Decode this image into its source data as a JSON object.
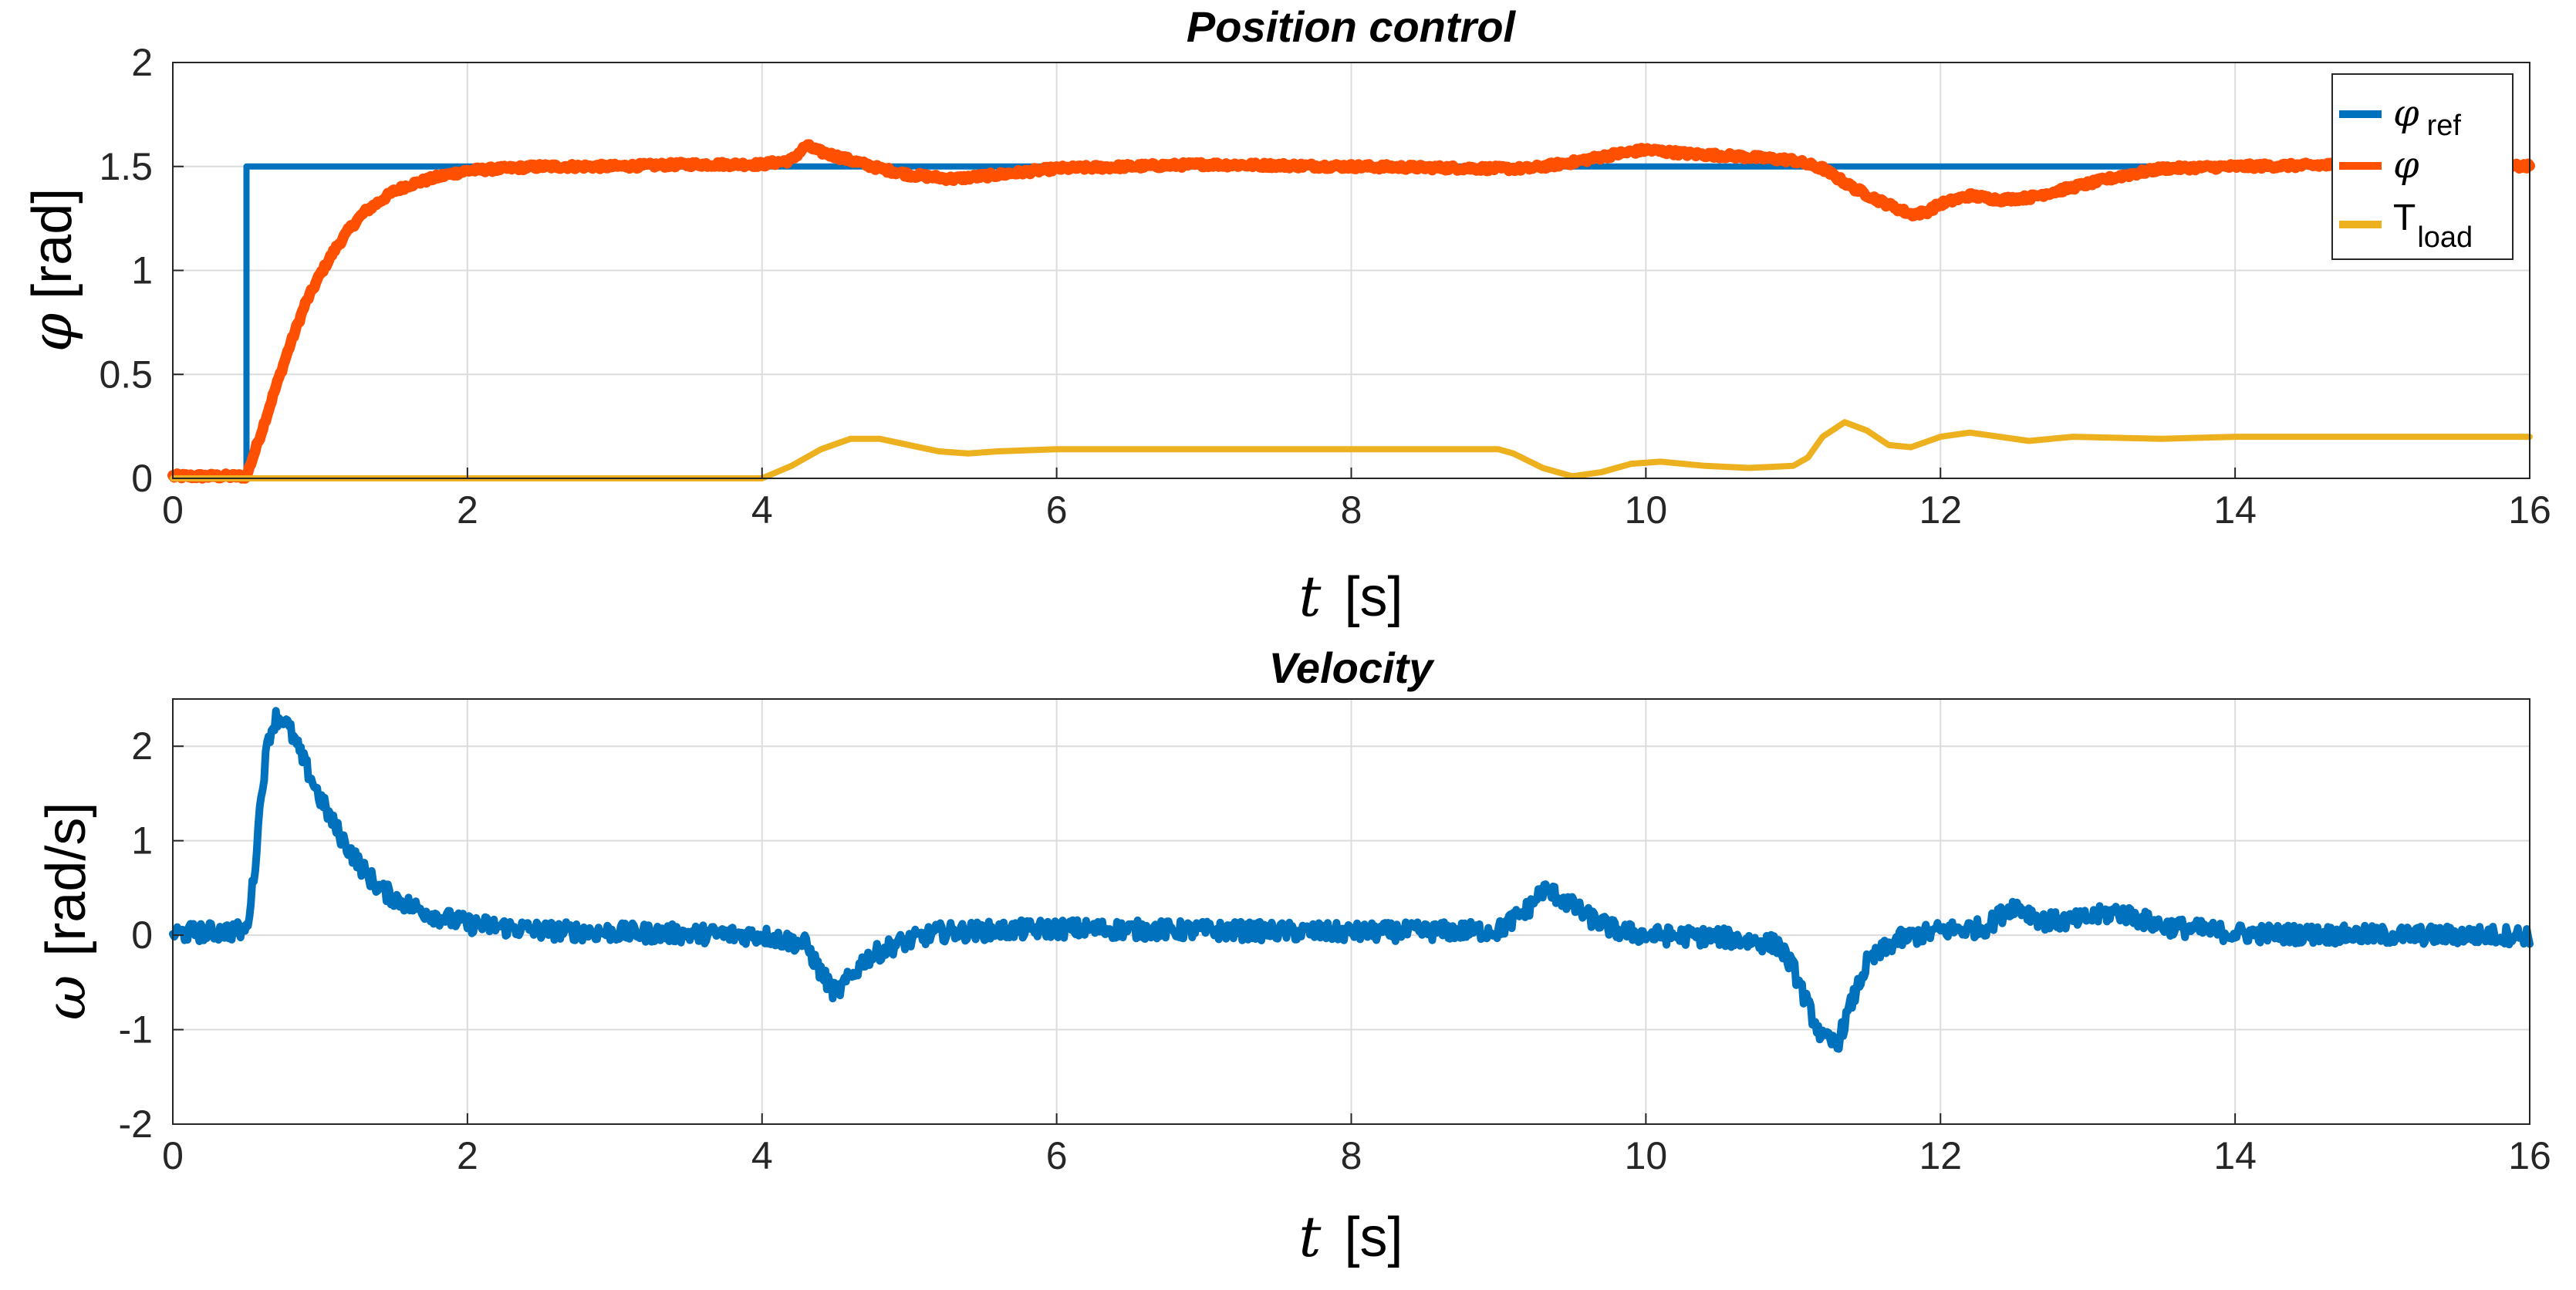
{
  "chart_data": [
    {
      "type": "line",
      "title": "Position control",
      "xlabel": "t",
      "xunit": "[s]",
      "ylabel": "φ",
      "yunit": "[rad]",
      "xlim": [
        0,
        16
      ],
      "ylim": [
        0,
        2
      ],
      "xticks": [
        0,
        2,
        4,
        6,
        8,
        10,
        12,
        14,
        16
      ],
      "yticks": [
        0,
        0.5,
        1,
        1.5,
        2
      ],
      "ytick_labels": [
        "0",
        "0.5",
        "1",
        "1.5",
        "2"
      ],
      "grid": true,
      "legend_position": "top-right",
      "series": [
        {
          "name": "φ",
          "subscript": "ref",
          "color": "#0072BD",
          "noise": 0,
          "x": [
            0,
            0.5,
            0.5,
            16
          ],
          "y": [
            0,
            0,
            1.5,
            1.5
          ]
        },
        {
          "name": "φ",
          "subscript": "",
          "color": "#FF4F00",
          "noise": 0.012,
          "x": [
            0,
            0.5,
            0.6,
            0.7,
            0.8,
            0.9,
            1.0,
            1.1,
            1.2,
            1.3,
            1.4,
            1.5,
            1.6,
            1.8,
            2.0,
            2.5,
            3.0,
            3.5,
            4.0,
            4.2,
            4.3,
            4.4,
            4.6,
            4.8,
            5.0,
            5.3,
            5.6,
            6.0,
            7.0,
            8.0,
            9.0,
            9.2,
            9.5,
            9.8,
            10.0,
            10.3,
            10.6,
            11.0,
            11.2,
            11.4,
            11.6,
            11.8,
            11.9,
            12.0,
            12.2,
            12.4,
            12.6,
            12.9,
            13.2,
            13.5,
            14.0,
            15.0,
            16.0
          ],
          "y": [
            0.01,
            0.01,
            0.22,
            0.44,
            0.65,
            0.84,
            0.98,
            1.1,
            1.2,
            1.28,
            1.33,
            1.38,
            1.41,
            1.45,
            1.48,
            1.5,
            1.5,
            1.51,
            1.51,
            1.53,
            1.6,
            1.57,
            1.53,
            1.49,
            1.46,
            1.44,
            1.46,
            1.49,
            1.51,
            1.5,
            1.49,
            1.49,
            1.52,
            1.56,
            1.58,
            1.56,
            1.55,
            1.53,
            1.49,
            1.4,
            1.33,
            1.27,
            1.28,
            1.32,
            1.36,
            1.34,
            1.35,
            1.4,
            1.45,
            1.49,
            1.5,
            1.51,
            1.5
          ]
        },
        {
          "name": "T",
          "subscript": "load",
          "color": "#EDB120",
          "noise": 0,
          "x": [
            0,
            4.0,
            4.2,
            4.4,
            4.6,
            4.8,
            5.0,
            5.2,
            5.4,
            5.6,
            6.0,
            7.0,
            8.0,
            9.0,
            9.1,
            9.3,
            9.5,
            9.7,
            9.9,
            10.1,
            10.4,
            10.7,
            11.0,
            11.1,
            11.2,
            11.35,
            11.5,
            11.65,
            11.8,
            12.0,
            12.2,
            12.4,
            12.6,
            12.9,
            13.5,
            14.0,
            15.0,
            16.0
          ],
          "y": [
            0,
            0,
            0.06,
            0.14,
            0.19,
            0.19,
            0.16,
            0.13,
            0.12,
            0.13,
            0.14,
            0.14,
            0.14,
            0.14,
            0.12,
            0.05,
            0.01,
            0.03,
            0.07,
            0.08,
            0.06,
            0.05,
            0.06,
            0.1,
            0.2,
            0.27,
            0.23,
            0.16,
            0.15,
            0.2,
            0.22,
            0.2,
            0.18,
            0.2,
            0.19,
            0.2,
            0.2,
            0.2
          ]
        }
      ]
    },
    {
      "type": "line",
      "title": "Velocity",
      "xlabel": "t",
      "xunit": "[s]",
      "ylabel": "ω",
      "yunit": "[rad/s]",
      "xlim": [
        0,
        16
      ],
      "ylim": [
        -2,
        2.5
      ],
      "xticks": [
        0,
        2,
        4,
        6,
        8,
        10,
        12,
        14,
        16
      ],
      "yticks": [
        -2,
        -1,
        0,
        1,
        2
      ],
      "ytick_labels": [
        "-2",
        "-1",
        "0",
        "1",
        "2"
      ],
      "grid": true,
      "series": [
        {
          "name": "ω",
          "color": "#0072BD",
          "noise": 0.1,
          "x": [
            0,
            0.5,
            0.55,
            0.6,
            0.65,
            0.7,
            0.75,
            0.8,
            0.9,
            1.0,
            1.1,
            1.2,
            1.3,
            1.4,
            1.5,
            1.6,
            1.8,
            2.0,
            2.5,
            3.0,
            4.0,
            4.3,
            4.4,
            4.5,
            4.6,
            4.7,
            4.9,
            5.2,
            5.6,
            6.0,
            7.0,
            8.0,
            9.0,
            9.2,
            9.3,
            9.4,
            9.6,
            9.8,
            10.0,
            10.5,
            10.9,
            11.0,
            11.1,
            11.2,
            11.3,
            11.4,
            11.5,
            11.7,
            12.0,
            12.3,
            12.5,
            12.7,
            12.9,
            13.2,
            13.5,
            14.0,
            15.0,
            16.0
          ],
          "y": [
            0.02,
            0.05,
            0.6,
            1.5,
            2.1,
            2.3,
            2.3,
            2.15,
            1.8,
            1.45,
            1.15,
            0.9,
            0.68,
            0.5,
            0.4,
            0.32,
            0.2,
            0.12,
            0.05,
            0.03,
            0.0,
            -0.1,
            -0.4,
            -0.62,
            -0.45,
            -0.25,
            -0.1,
            0.03,
            0.05,
            0.07,
            0.05,
            0.03,
            0.05,
            0.28,
            0.48,
            0.42,
            0.2,
            0.05,
            0.0,
            -0.02,
            -0.1,
            -0.35,
            -0.75,
            -1.1,
            -1.15,
            -0.7,
            -0.3,
            -0.05,
            0.05,
            0.08,
            0.32,
            0.15,
            0.15,
            0.25,
            0.1,
            0.02,
            0.0,
            0.0
          ]
        }
      ]
    }
  ]
}
